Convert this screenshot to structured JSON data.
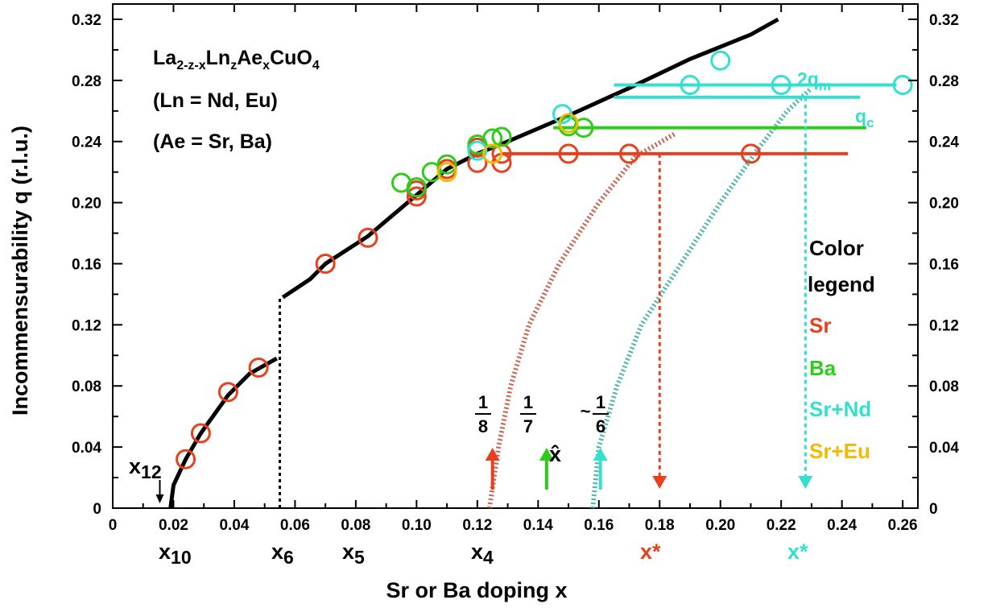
{
  "chart_data": {
    "type": "scatter",
    "title": "",
    "xlabel": "Sr or Ba doping x",
    "ylabel": "Incommensurability q (r.l.u.)",
    "xlim": [
      0,
      0.265
    ],
    "ylim": [
      0,
      0.33
    ],
    "x_ticks": [
      "0",
      "0.02",
      "0.04",
      "0.06",
      "0.08",
      "0.10",
      "0.12",
      "0.14",
      "0.16",
      "0.18",
      "0.20",
      "0.22",
      "0.24",
      "0.26"
    ],
    "y_ticks": [
      "0",
      "0.04",
      "0.08",
      "0.12",
      "0.16",
      "0.20",
      "0.24",
      "0.28",
      "0.32"
    ],
    "annotations": {
      "formula_lines": [
        "La2-z-xLnzAexCuO4",
        "(Ln = Nd, Eu)",
        "(Ae = Sr, Ba)"
      ],
      "legend_title": "Color",
      "legend_subtitle": "legend",
      "markers": [
        "x12",
        "x10",
        "x6",
        "x5",
        "x4",
        "x*",
        "x*"
      ],
      "fractions": [
        "1",
        "8",
        "1",
        "7",
        "~",
        "1",
        "6"
      ],
      "xhat": "x̂",
      "line_labels": [
        "2qm",
        "qc"
      ]
    },
    "series": [
      {
        "name": "Sr",
        "color": "#e8401c",
        "x": [
          0.024,
          0.029,
          0.038,
          0.048,
          0.07,
          0.084,
          0.1,
          0.1,
          0.11,
          0.12,
          0.12,
          0.128,
          0.128,
          0.15,
          0.17,
          0.21
        ],
        "y": [
          0.032,
          0.049,
          0.076,
          0.092,
          0.16,
          0.177,
          0.204,
          0.208,
          0.222,
          0.226,
          0.236,
          0.226,
          0.232,
          0.232,
          0.232,
          0.232
        ]
      },
      {
        "name": "Ba",
        "color": "#2ecc1a",
        "x": [
          0.095,
          0.1,
          0.105,
          0.11,
          0.12,
          0.125,
          0.128,
          0.15,
          0.155
        ],
        "y": [
          0.213,
          0.21,
          0.22,
          0.225,
          0.238,
          0.242,
          0.243,
          0.25,
          0.249
        ]
      },
      {
        "name": "Sr+Nd",
        "color": "#33e0d0",
        "x": [
          0.12,
          0.148,
          0.19,
          0.2,
          0.22,
          0.26
        ],
        "y": [
          0.234,
          0.258,
          0.277,
          0.293,
          0.277,
          0.277
        ]
      },
      {
        "name": "Sr+Eu",
        "color": "#f5b800",
        "x": [
          0.11,
          0.125,
          0.15
        ],
        "y": [
          0.22,
          0.232,
          0.252
        ]
      }
    ],
    "colors": {
      "Sr": "#e8401c",
      "Ba": "#2ecc1a",
      "SrNd": "#33e0d0",
      "SrEu": "#f5b800",
      "curve": "#000000"
    }
  }
}
